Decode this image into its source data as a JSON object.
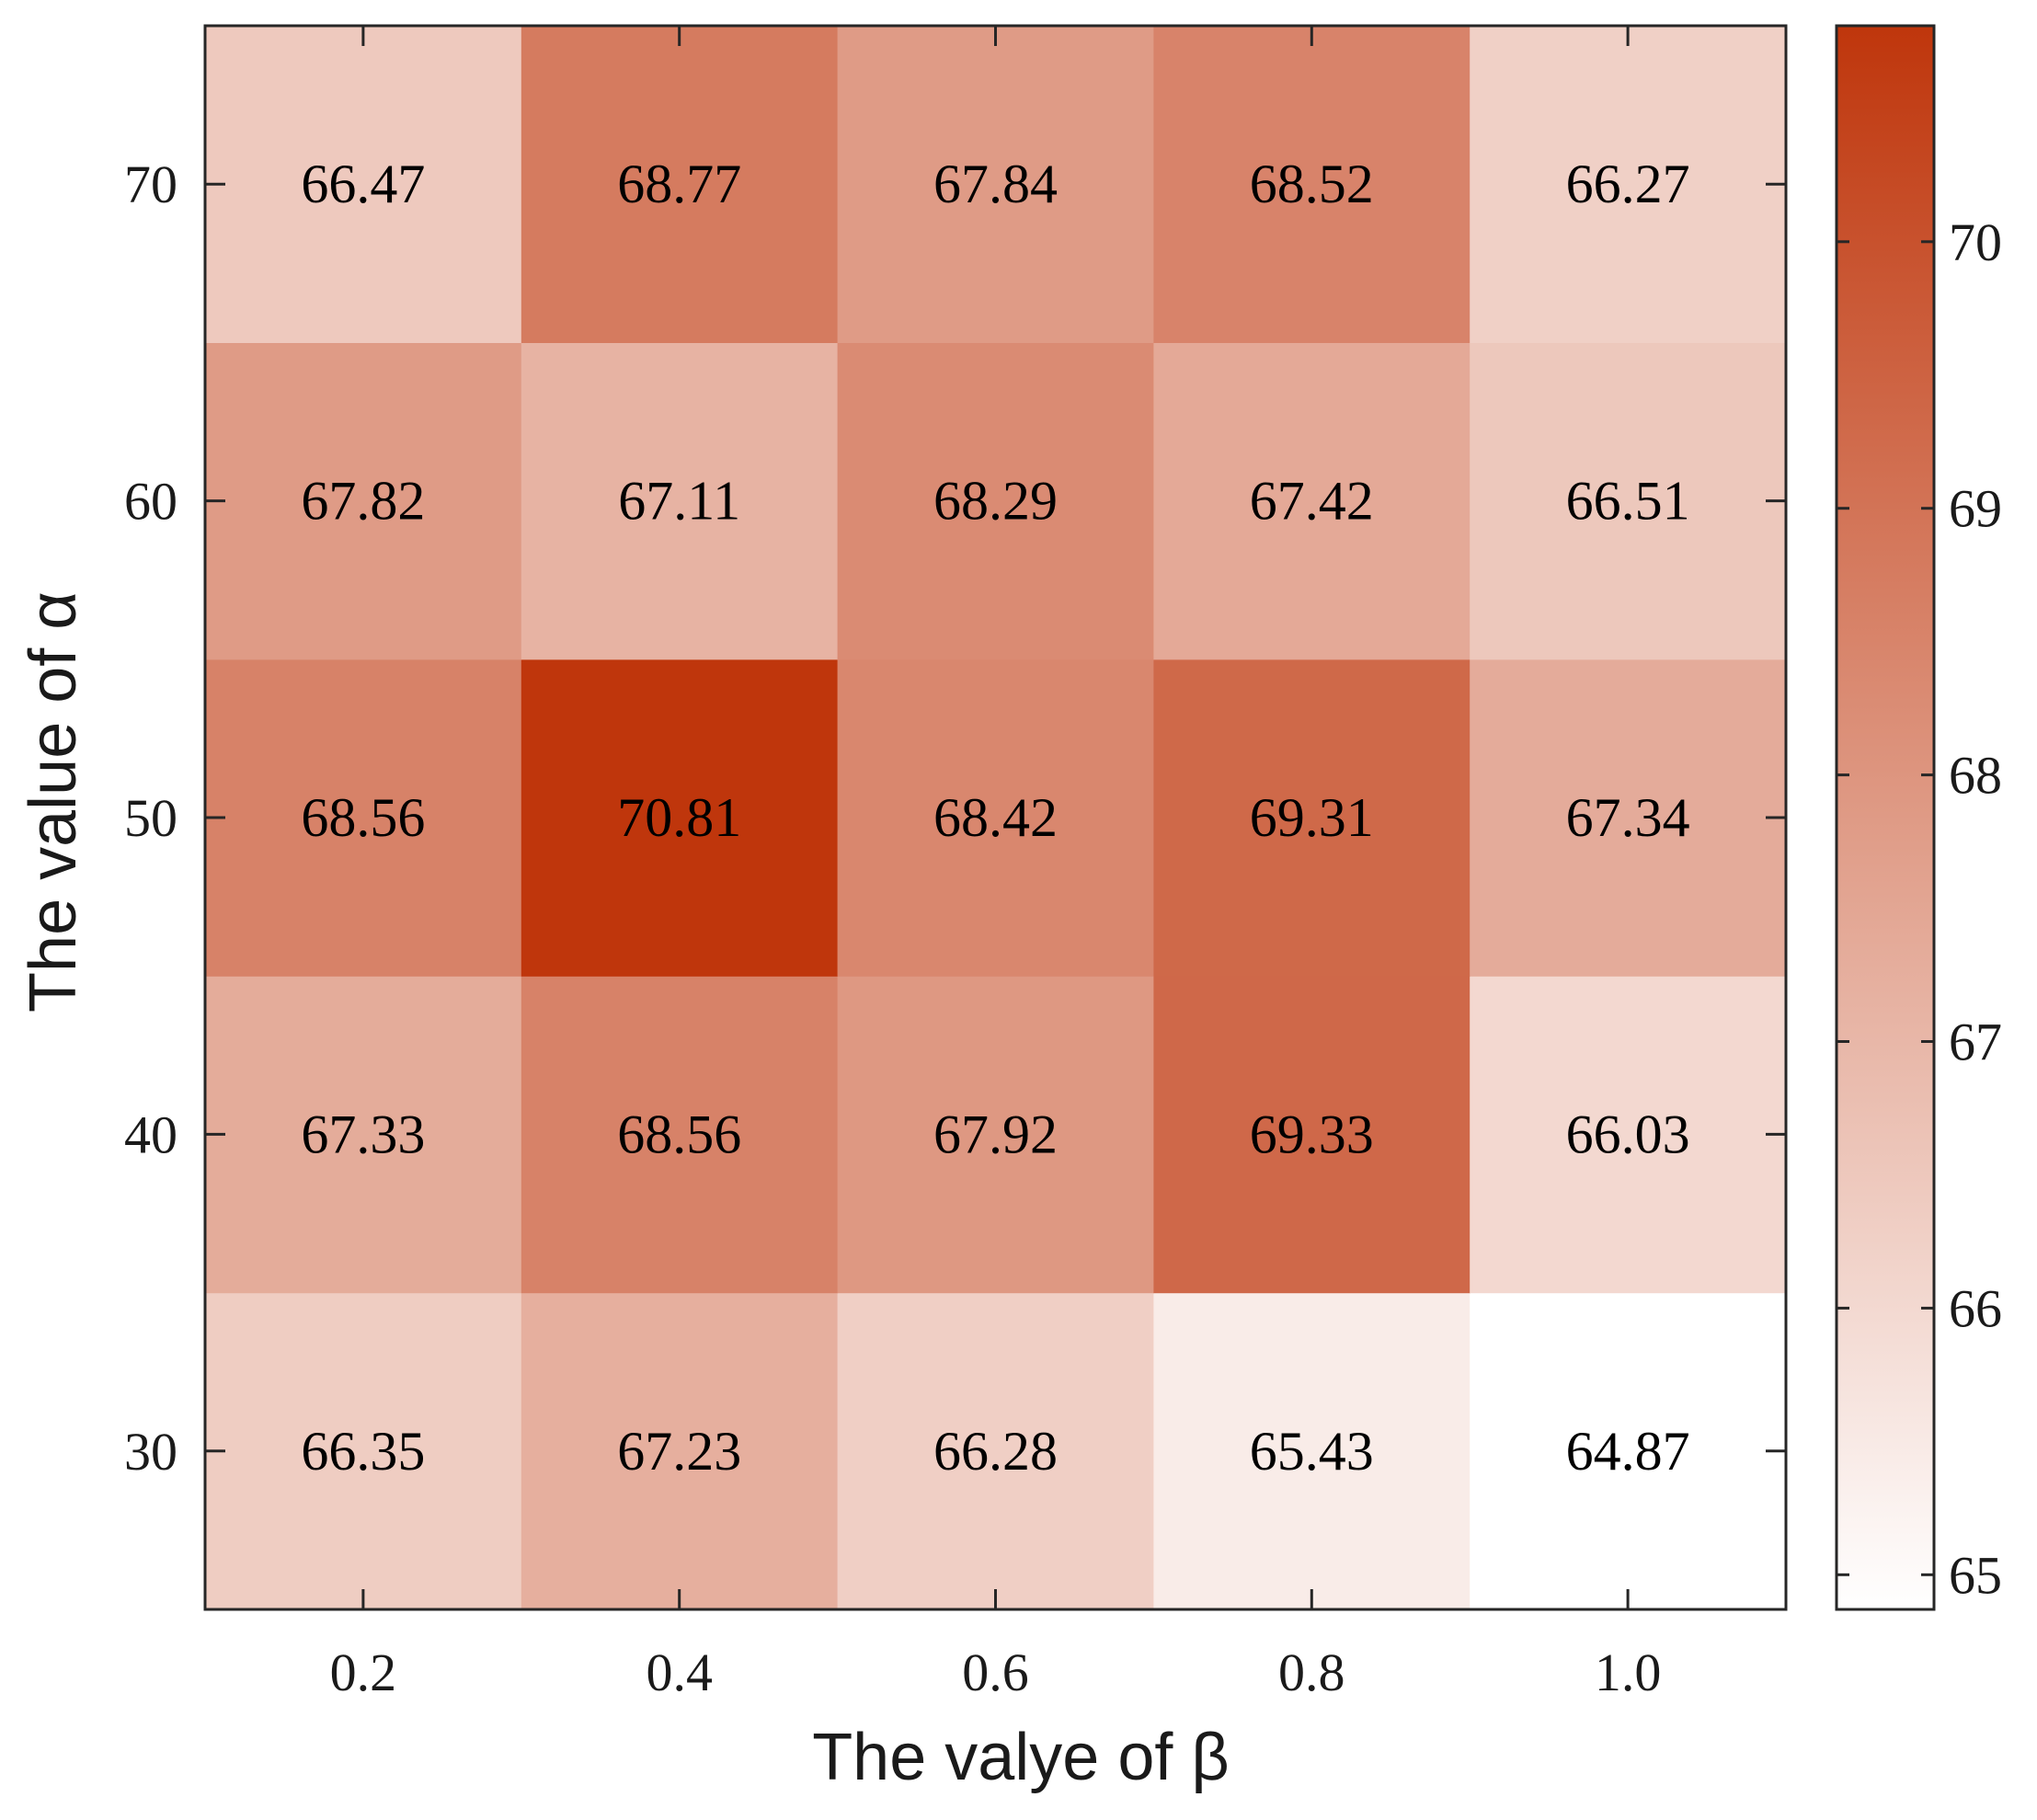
{
  "chart_data": {
    "type": "heatmap",
    "xlabel": "The valye of β",
    "ylabel": "The value of α",
    "x_categories": [
      "0.2",
      "0.4",
      "0.6",
      "0.8",
      "1.0"
    ],
    "y_categories": [
      "30",
      "40",
      "50",
      "60",
      "70"
    ],
    "values": [
      [
        66.35,
        67.23,
        66.28,
        65.43,
        64.87
      ],
      [
        67.33,
        68.56,
        67.92,
        69.33,
        66.03
      ],
      [
        68.56,
        70.81,
        68.42,
        69.31,
        67.34
      ],
      [
        67.82,
        67.11,
        68.29,
        67.42,
        66.51
      ],
      [
        66.47,
        68.77,
        67.84,
        68.52,
        66.27
      ]
    ],
    "value_labels": [
      [
        "66.35",
        "67.23",
        "66.28",
        "65.43",
        "64.87"
      ],
      [
        "67.33",
        "68.56",
        "67.92",
        "69.33",
        "66.03"
      ],
      [
        "68.56",
        "70.81",
        "68.42",
        "69.31",
        "67.34"
      ],
      [
        "67.82",
        "67.11",
        "68.29",
        "67.42",
        "66.51"
      ],
      [
        "66.47",
        "68.77",
        "67.84",
        "68.52",
        "66.27"
      ]
    ],
    "colorbar": {
      "min": 64.87,
      "max": 70.81,
      "ticks": [
        "65",
        "66",
        "67",
        "68",
        "69",
        "70"
      ],
      "low_color": "#ffffff",
      "high_color": "#bf360c"
    },
    "grid": false,
    "legend": "colorbar-right"
  }
}
